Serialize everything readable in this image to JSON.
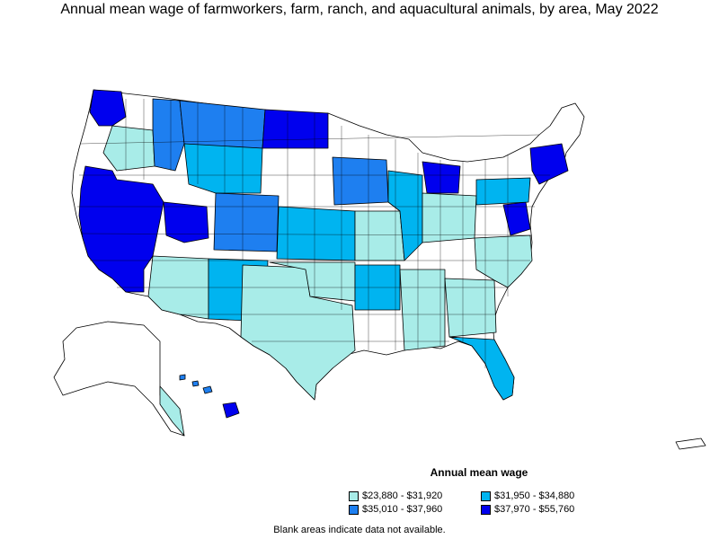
{
  "title": "Annual mean wage of farmworkers, farm, ranch, and aquacultural animals, by area, May 2022",
  "legend": {
    "title": "Annual mean wage",
    "items": [
      {
        "label": "$23,880 - $31,920",
        "color": "#a8ece8"
      },
      {
        "label": "$31,950 - $34,880",
        "color": "#00b4f0"
      },
      {
        "label": "$35,010 - $37,960",
        "color": "#1e7ff0"
      },
      {
        "label": "$37,970 - $55,760",
        "color": "#0000ee"
      }
    ]
  },
  "footnote": "Blank areas indicate data not available.",
  "colors": {
    "no_data": "#ffffff",
    "border": "#000000"
  }
}
